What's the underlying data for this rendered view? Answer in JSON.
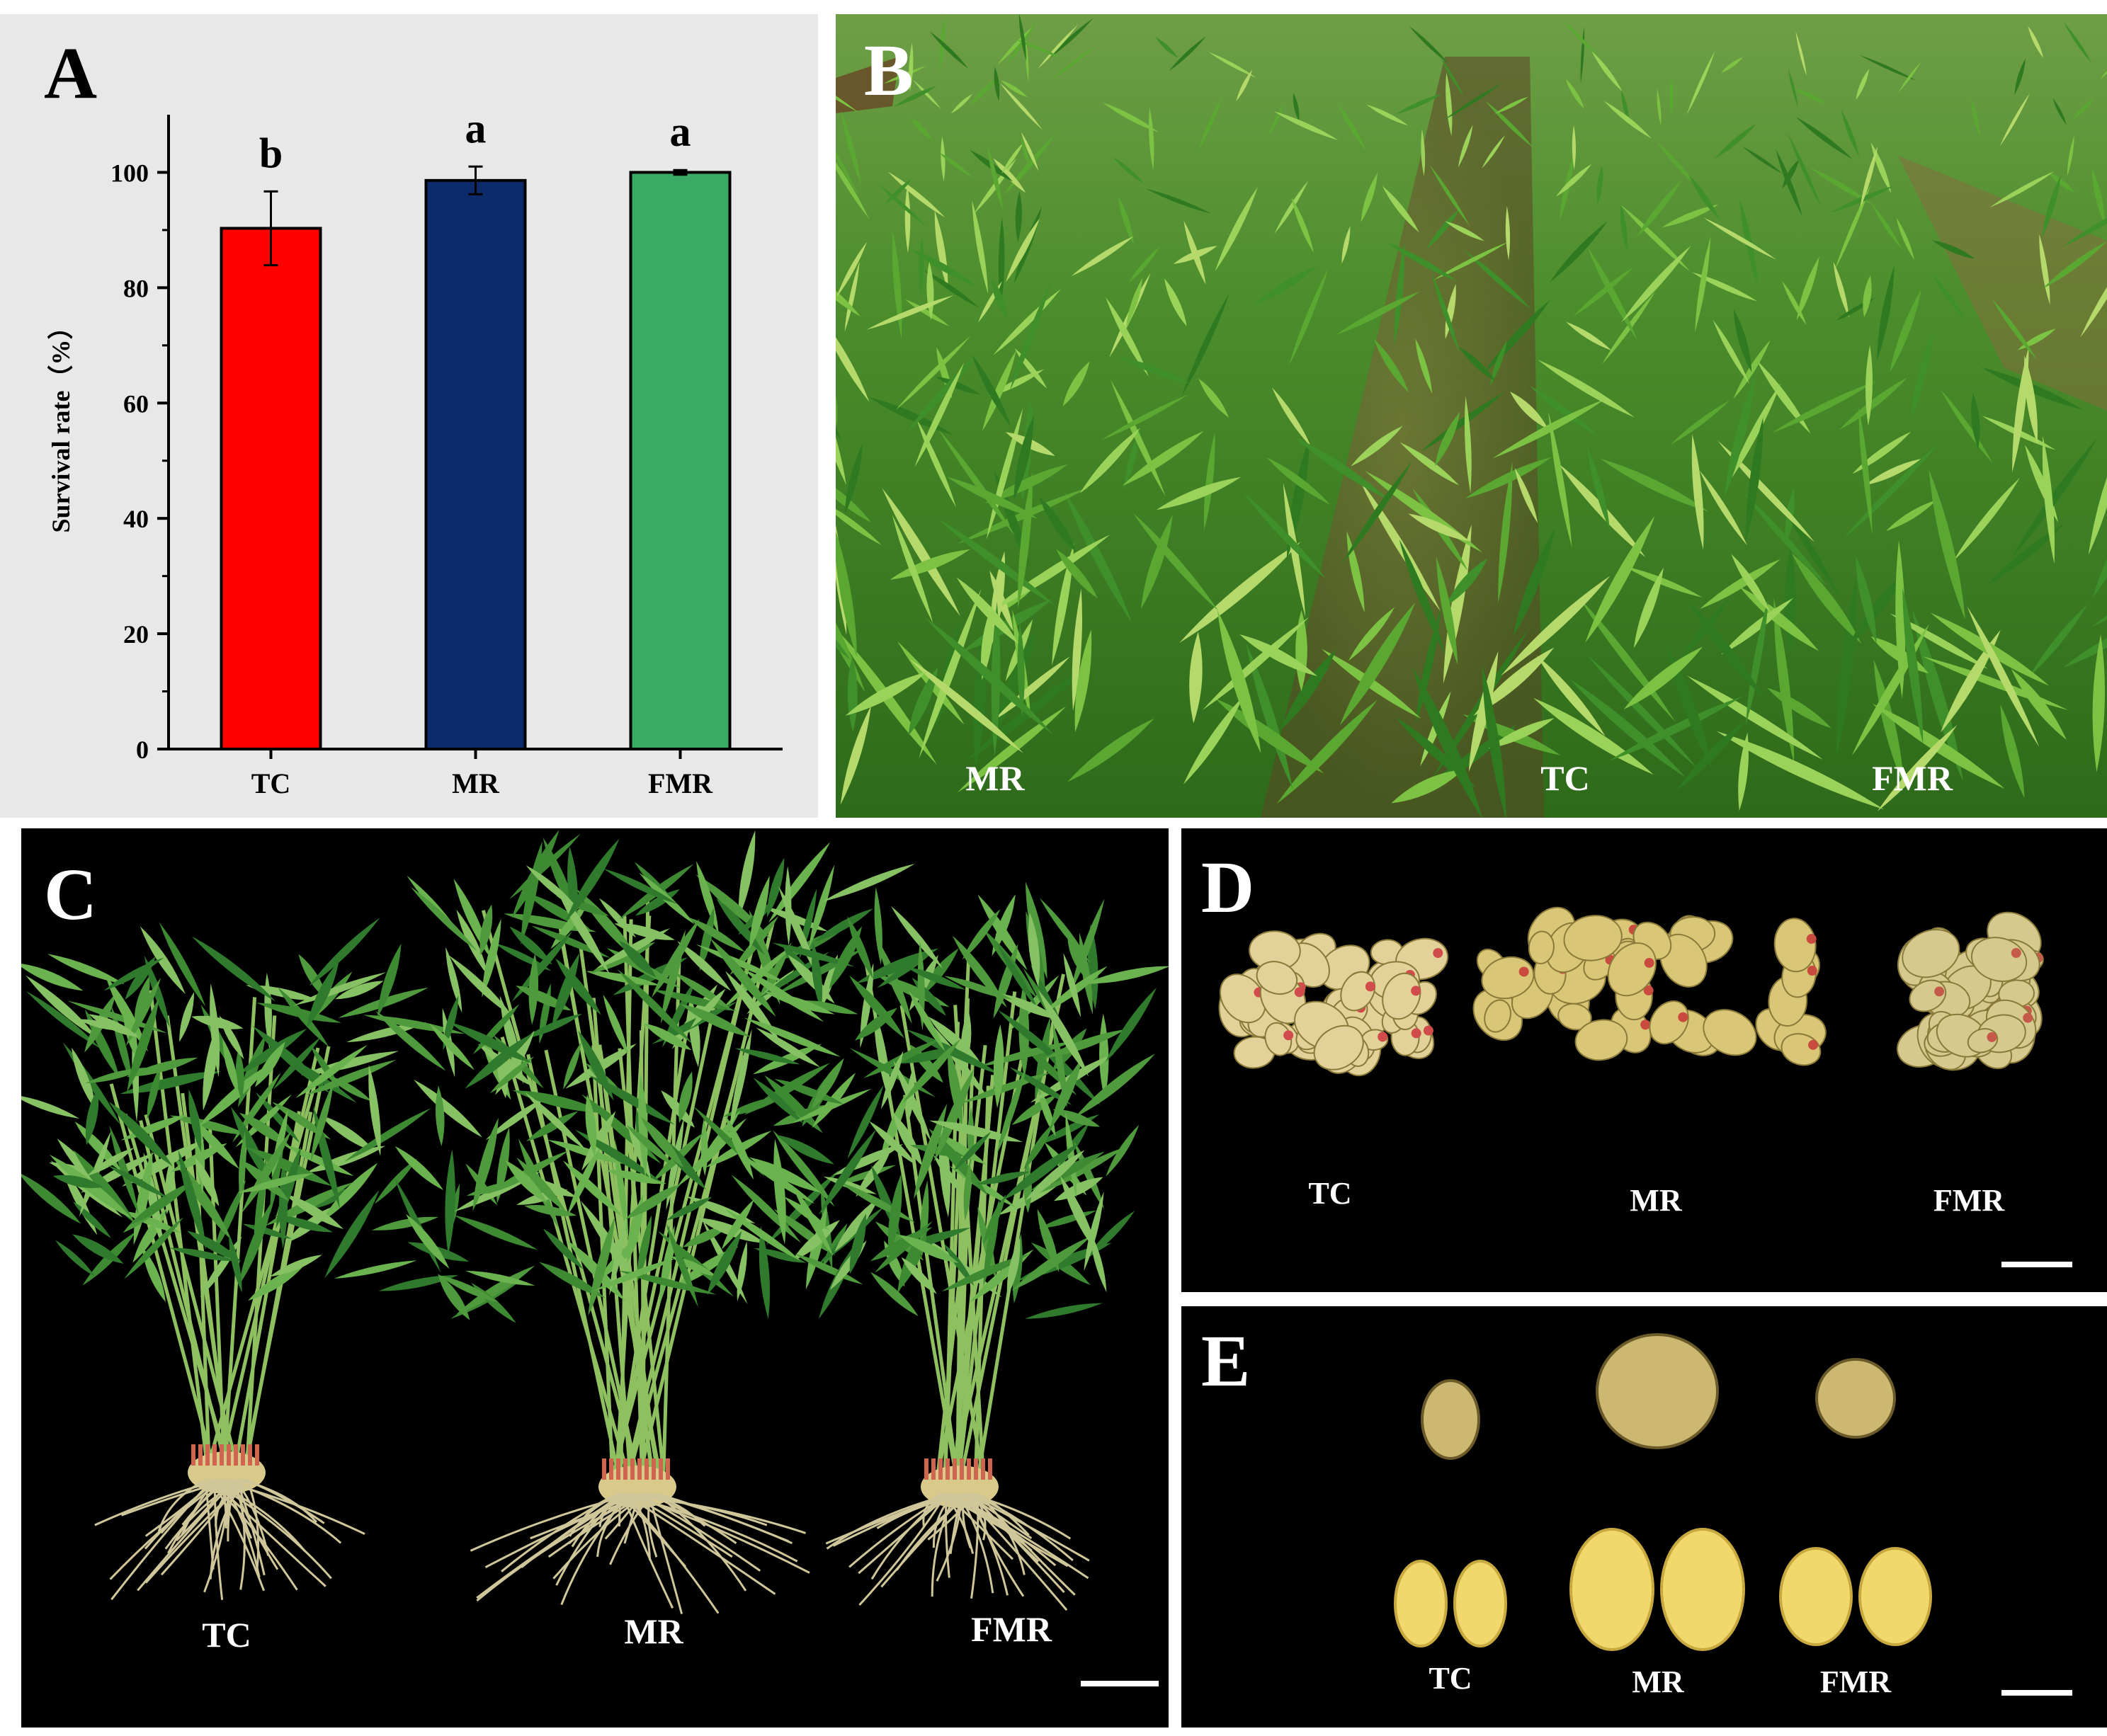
{
  "panels": {
    "a": {
      "letter": "A"
    },
    "b": {
      "letter": "B",
      "labels": [
        "MR",
        "TC",
        "FMR"
      ]
    },
    "c": {
      "letter": "C",
      "labels": [
        "TC",
        "MR",
        "FMR"
      ]
    },
    "d": {
      "letter": "D",
      "labels": [
        "TC",
        "MR",
        "FMR"
      ]
    },
    "e": {
      "letter": "E",
      "labels": [
        "TC",
        "MR",
        "FMR"
      ]
    }
  },
  "chart_data": {
    "type": "bar",
    "categories": [
      "TC",
      "MR",
      "FMR"
    ],
    "values": [
      90.3,
      98.6,
      100.0
    ],
    "errors": [
      6.4,
      2.4,
      0.4
    ],
    "significance": [
      "b",
      "a",
      "a"
    ],
    "colors": [
      "#ff0000",
      "#0d2a6b",
      "#3aaa64"
    ],
    "ylabel": "Survival rate（%）",
    "xlabel": "",
    "ylim": [
      0,
      110
    ],
    "yticks": [
      0,
      20,
      40,
      60,
      80,
      100
    ],
    "grid": false
  },
  "colors": {
    "panel_a_bg": "#e8e8e8",
    "photo_bg": "#000000",
    "foliage": "#3f8f2a"
  }
}
